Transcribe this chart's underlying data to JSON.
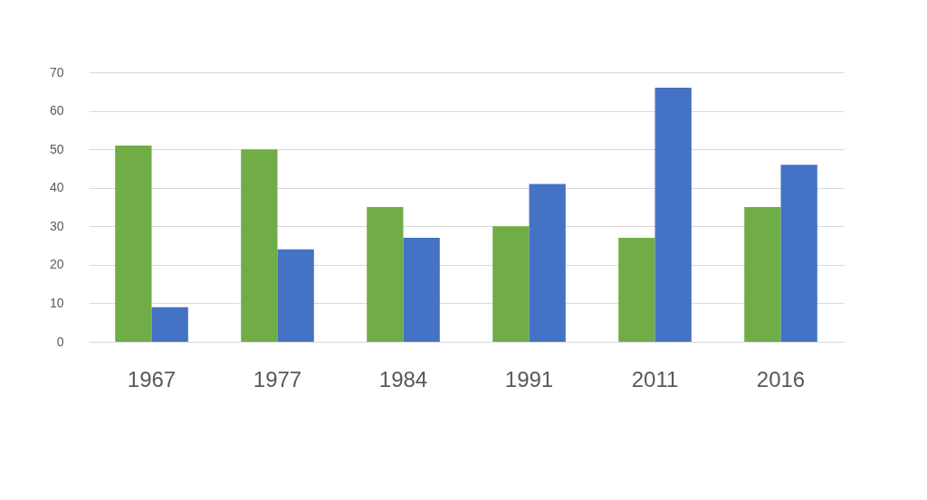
{
  "chart_data": {
    "type": "bar",
    "categories": [
      "1967",
      "1977",
      "1984",
      "1991",
      "2011",
      "2016"
    ],
    "series": [
      {
        "color": "#70ad47",
        "values": [
          51,
          50,
          35,
          30,
          27,
          35
        ]
      },
      {
        "color": "#4472c4",
        "values": [
          9,
          24,
          27,
          41,
          66,
          46
        ]
      }
    ],
    "ylim": [
      0,
      70
    ],
    "yticks": [
      0,
      10,
      20,
      30,
      40,
      50,
      60,
      70
    ],
    "grid": "y",
    "legend": false
  }
}
